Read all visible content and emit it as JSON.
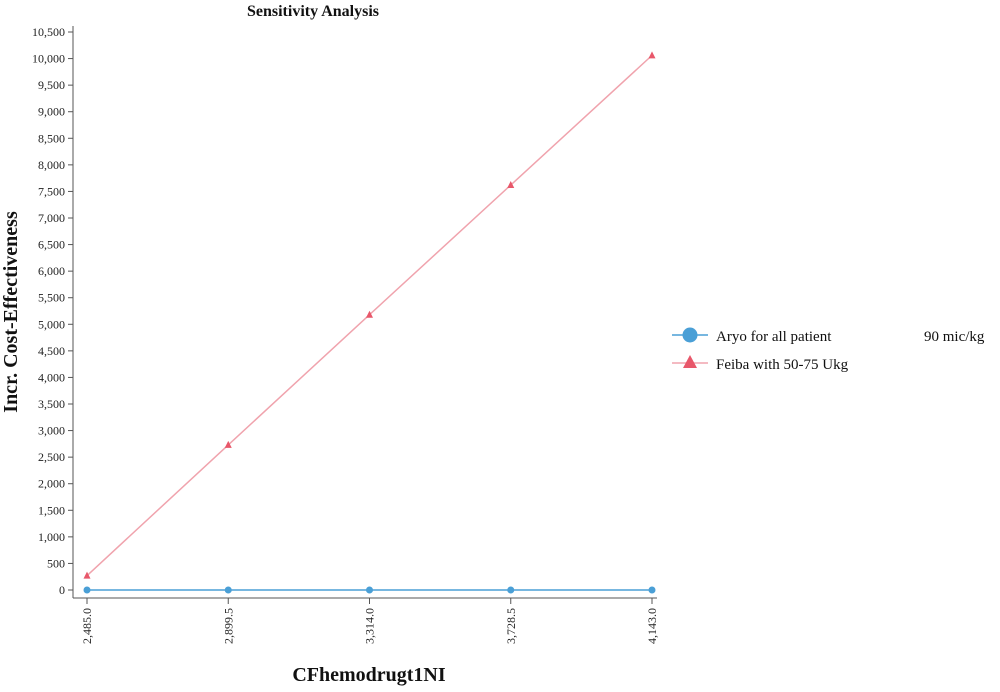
{
  "chart_data": {
    "type": "line",
    "title": "Sensitivity Analysis",
    "xlabel": "CFhemodrugt1NI",
    "ylabel": "Incr. Cost-Effectiveness",
    "x": [
      2485.0,
      2899.5,
      3314.0,
      3728.5,
      4143.0
    ],
    "x_tick_labels": [
      "2,485.0",
      "2,899.5",
      "3,314.0",
      "3,728.5",
      "4,143.0"
    ],
    "ylim": [
      0,
      10500
    ],
    "y_ticks": [
      0,
      500,
      1000,
      1500,
      2000,
      2500,
      3000,
      3500,
      4000,
      4500,
      5000,
      5500,
      6000,
      6500,
      7000,
      7500,
      8000,
      8500,
      9000,
      9500,
      10000,
      10500
    ],
    "y_tick_labels": [
      "0",
      "500",
      "1,000",
      "1,500",
      "2,000",
      "2,500",
      "3,000",
      "3,500",
      "4,000",
      "4,500",
      "5,000",
      "5,500",
      "6,000",
      "6,500",
      "7,000",
      "7,500",
      "8,000",
      "8,500",
      "9,000",
      "9,500",
      "10,000",
      "10,500"
    ],
    "grid": false,
    "legend_position": "right",
    "series": [
      {
        "name": "Aryo for all patient",
        "name_suffix": "90 mic/kg",
        "marker": "circle",
        "color": "#4a9fd6",
        "values": [
          0,
          0,
          0,
          0,
          0
        ]
      },
      {
        "name": "Feiba with 50-75 Ukg",
        "marker": "triangle",
        "color": "#e8576a",
        "line_color": "#f0a3ad",
        "values": [
          270,
          2730,
          5180,
          7620,
          10060
        ]
      }
    ]
  }
}
